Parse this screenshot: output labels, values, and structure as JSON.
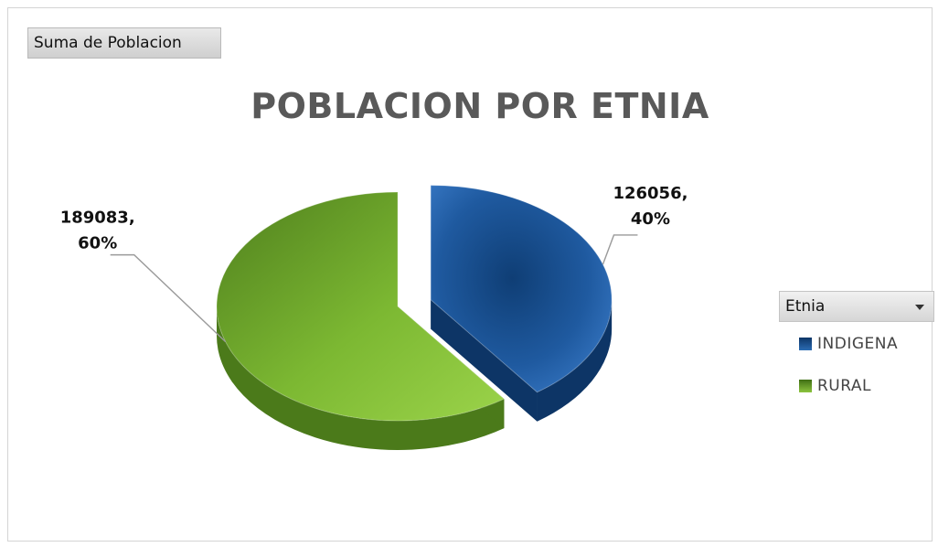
{
  "pivot": {
    "field_button": "Suma de Poblacion"
  },
  "legend": {
    "header": "Etnia"
  },
  "chart_data": {
    "type": "pie",
    "title": "POBLACION POR ETNIA",
    "slices": [
      {
        "name": "INDIGENA",
        "value": 126056,
        "percent": 40,
        "label_line1": "126056,",
        "label_line2": "40%",
        "color": "#1f5aa0",
        "dark": "#0d3566",
        "exploded": true
      },
      {
        "name": "RURAL",
        "value": 189083,
        "percent": 60,
        "label_line1": "189083,",
        "label_line2": "60%",
        "color": "#7cb832",
        "dark": "#4b7a1a",
        "exploded": false
      }
    ],
    "legend_placement": "right"
  }
}
